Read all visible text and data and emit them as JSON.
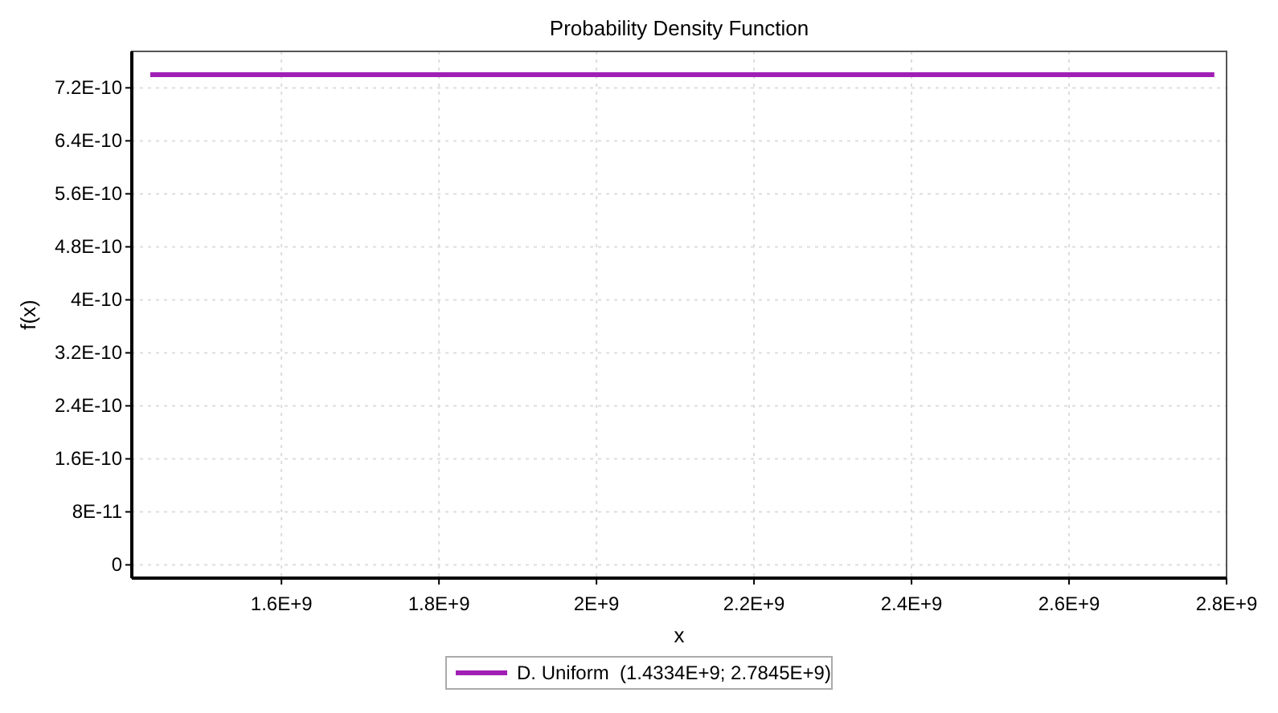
{
  "chart_data": {
    "type": "line",
    "title": "Probability Density Function",
    "xlabel": "x",
    "ylabel": "f(x)",
    "x": [
      1433400000,
      2784500000
    ],
    "series": [
      {
        "name": "D. Uniform  (1.4334E+9; 2.7845E+9)",
        "color": "#a01fb4",
        "values": [
          7.4e-10,
          7.4e-10
        ]
      }
    ],
    "xlim": [
      1410000000,
      2800000000
    ],
    "xticks": [
      {
        "value": 1600000000,
        "label": "1.6E+9"
      },
      {
        "value": 1800000000,
        "label": "1.8E+9"
      },
      {
        "value": 2000000000,
        "label": "2E+9"
      },
      {
        "value": 2200000000,
        "label": "2.2E+9"
      },
      {
        "value": 2400000000,
        "label": "2.4E+9"
      },
      {
        "value": 2600000000,
        "label": "2.6E+9"
      },
      {
        "value": 2800000000,
        "label": "2.8E+9"
      }
    ],
    "ylim": [
      -2e-11,
      7.75e-10
    ],
    "yticks": [
      0,
      {
        "value": 8e-11,
        "label": "8E-11"
      },
      {
        "value": 1.6e-10,
        "label": "1.6E-10"
      },
      {
        "value": 2.4e-10,
        "label": "2.4E-10"
      },
      {
        "value": 3.2e-10,
        "label": "3.2E-10"
      },
      {
        "value": 4e-10,
        "label": "4E-10"
      },
      {
        "value": 4.8e-10,
        "label": "4.8E-10"
      },
      {
        "value": 5.6e-10,
        "label": "5.6E-10"
      },
      {
        "value": 6.4e-10,
        "label": "6.4E-10"
      },
      {
        "value": 7.2e-10,
        "label": "7.2E-10"
      }
    ],
    "grid": true,
    "legend": "bottom",
    "marker": "none",
    "line_style": "solid"
  }
}
